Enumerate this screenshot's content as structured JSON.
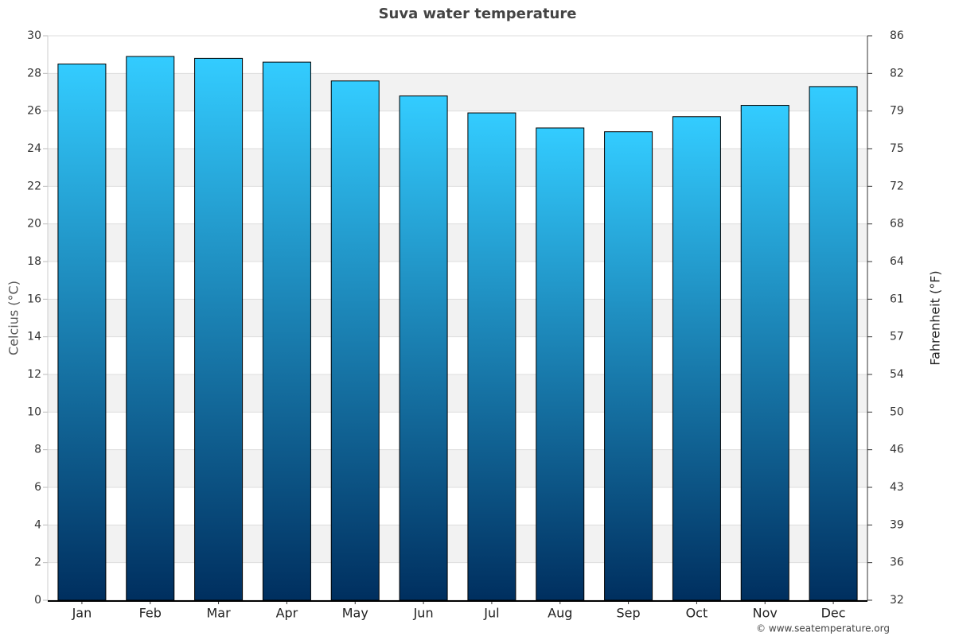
{
  "chart_data": {
    "type": "bar",
    "title": "Suva water temperature",
    "y_label": "Celcius (°C)",
    "y2_label": "Fahrenheit (°F)",
    "credit": "© www.seatemperature.org",
    "categories": [
      "Jan",
      "Feb",
      "Mar",
      "Apr",
      "May",
      "Jun",
      "Jul",
      "Aug",
      "Sep",
      "Oct",
      "Nov",
      "Dec"
    ],
    "values": [
      28.5,
      28.9,
      28.8,
      28.6,
      27.6,
      26.8,
      25.9,
      25.1,
      24.9,
      25.7,
      26.3,
      27.3
    ],
    "color_top": "#33ccff",
    "color_bottom": "#002f5f",
    "ylim": [
      0,
      30
    ],
    "yticks": [
      0,
      2,
      4,
      6,
      8,
      10,
      12,
      14,
      16,
      18,
      20,
      22,
      24,
      26,
      28,
      30
    ],
    "y2lim": [
      32,
      86
    ],
    "y2ticks": [
      32,
      {
        "value": 35.6,
        "label": "36"
      },
      {
        "value": 39.2,
        "label": "39"
      },
      {
        "value": 42.8,
        "label": "43"
      },
      {
        "value": 46.4,
        "label": "46"
      },
      50,
      {
        "value": 53.6,
        "label": "54"
      },
      {
        "value": 57.2,
        "label": "57"
      },
      {
        "value": 60.8,
        "label": "61"
      },
      {
        "value": 64.4,
        "label": "64"
      },
      68,
      {
        "value": 71.6,
        "label": "72"
      },
      {
        "value": 75.2,
        "label": "75"
      },
      {
        "value": 78.8,
        "label": "79"
      },
      {
        "value": 82.4,
        "label": "82"
      },
      86
    ],
    "grid": true
  }
}
